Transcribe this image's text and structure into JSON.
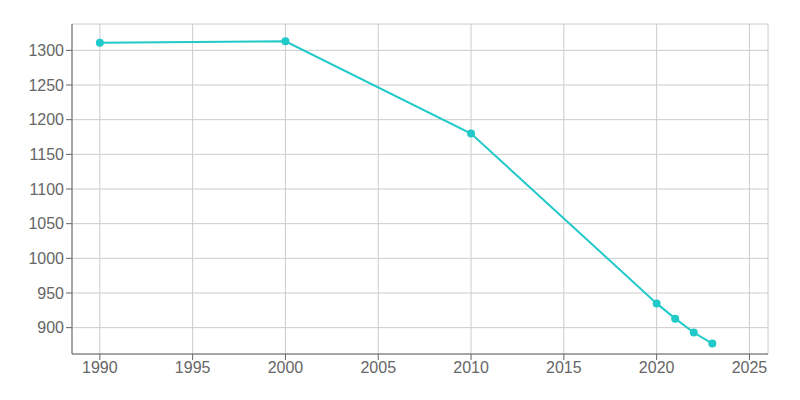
{
  "chart_data": {
    "type": "line",
    "x": [
      1990,
      2000,
      2010,
      2020,
      2021,
      2022,
      2023
    ],
    "values": [
      1311,
      1313,
      1180,
      935,
      913,
      893,
      877
    ],
    "color": "#22C9C9",
    "marker": "circle",
    "line_style": "solid",
    "xlim": [
      1988.5,
      2026
    ],
    "ylim": [
      862,
      1338
    ],
    "xticks": [
      1990,
      1995,
      2000,
      2005,
      2010,
      2015,
      2020,
      2025
    ],
    "yticks": [
      900,
      950,
      1000,
      1050,
      1100,
      1150,
      1200,
      1250,
      1300
    ],
    "grid": true
  }
}
